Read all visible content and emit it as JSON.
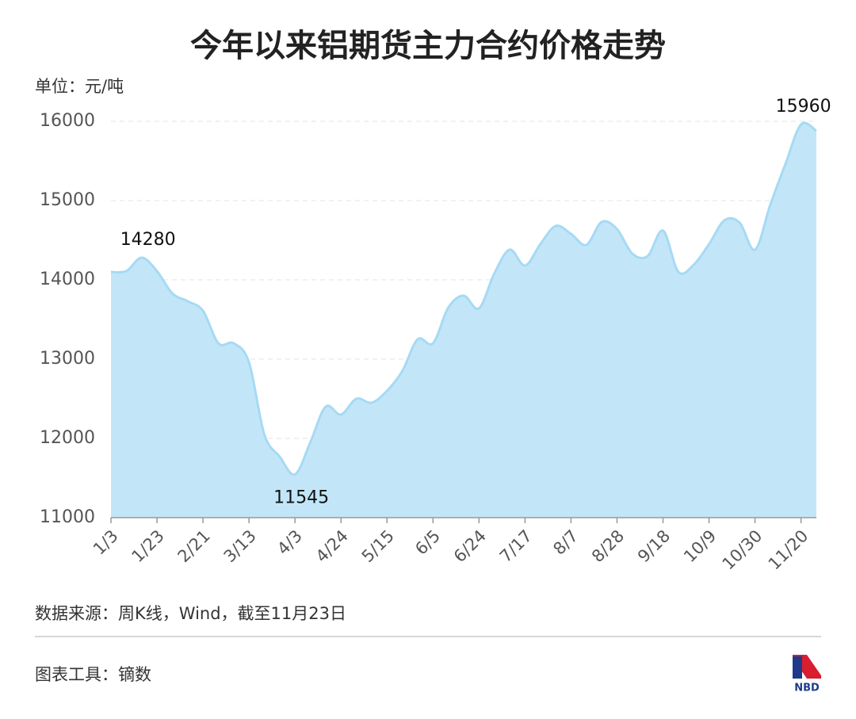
{
  "chart_data": {
    "type": "area",
    "title": "今年以来铝期货主力合约价格走势",
    "y_label": "单位：元/吨",
    "source": "数据来源：周K线，Wind，截至11月23日",
    "credit": "图表工具：镝数",
    "logo": "NBD",
    "categories": [
      "1/3",
      null,
      null,
      "1/23",
      null,
      null,
      "2/21",
      null,
      null,
      "3/13",
      null,
      null,
      "4/3",
      null,
      null,
      "4/24",
      null,
      null,
      "5/15",
      null,
      null,
      "6/5",
      null,
      null,
      "6/24",
      null,
      null,
      "7/17",
      null,
      null,
      "8/7",
      null,
      null,
      "8/28",
      null,
      null,
      "9/18",
      null,
      null,
      "10/9",
      null,
      null,
      "10/30",
      null,
      null,
      "11/20",
      null
    ],
    "values": [
      14100,
      14110,
      14280,
      14110,
      13830,
      13730,
      13610,
      13200,
      13200,
      12960,
      12050,
      11770,
      11545,
      11950,
      12400,
      12300,
      12500,
      12450,
      12600,
      12850,
      13250,
      13200,
      13650,
      13800,
      13640,
      14080,
      14380,
      14180,
      14450,
      14680,
      14580,
      14440,
      14730,
      14640,
      14330,
      14300,
      14620,
      14100,
      14190,
      14450,
      14750,
      14720,
      14380,
      14950,
      15470,
      15960,
      15880
    ],
    "value_labels": [
      null,
      null,
      "14280",
      null,
      null,
      null,
      null,
      null,
      null,
      null,
      null,
      null,
      "11545",
      null,
      null,
      null,
      null,
      null,
      null,
      null,
      null,
      null,
      null,
      null,
      null,
      null,
      null,
      null,
      null,
      null,
      null,
      null,
      null,
      null,
      null,
      null,
      null,
      null,
      null,
      null,
      null,
      null,
      null,
      null,
      null,
      "15960",
      null
    ],
    "color": "#c2e6f8",
    "line_color": "#a6daf4",
    "ylim": [
      11000,
      16000
    ],
    "yticks": [
      11000,
      12000,
      13000,
      14000,
      15000,
      16000
    ],
    "grid": true
  }
}
